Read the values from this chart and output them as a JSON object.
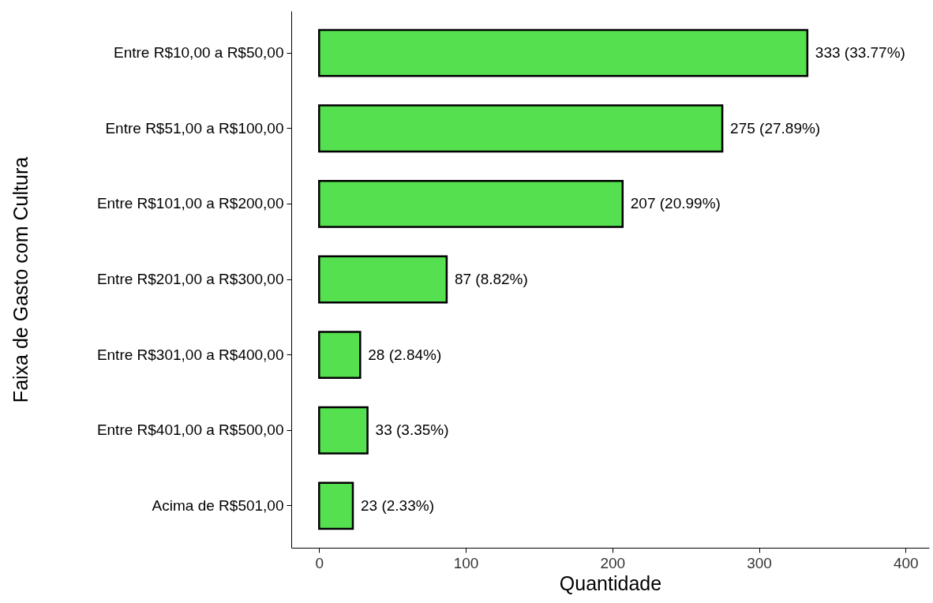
{
  "chart_data": {
    "type": "bar",
    "orientation": "horizontal",
    "xlabel": "Quantidade",
    "ylabel": "Faixa de Gasto com Cultura",
    "categories": [
      "Entre R$10,00 a R$50,00",
      "Entre R$51,00 a R$100,00",
      "Entre R$101,00 a R$200,00",
      "Entre R$201,00 a R$300,00",
      "Entre R$301,00 a R$400,00",
      "Entre R$401,00 a R$500,00",
      "Acima de R$501,00"
    ],
    "values": [
      333,
      275,
      207,
      87,
      28,
      33,
      23
    ],
    "value_labels": [
      "333 (33.77%)",
      "275 (27.89%)",
      "207 (20.99%)",
      "87 (8.82%)",
      "28 (2.84%)",
      "33 (3.35%)",
      "23 (2.33%)"
    ],
    "color": "#55e04f",
    "xlim": [
      -19,
      416
    ],
    "xticks": [
      0,
      100,
      200,
      300,
      400
    ],
    "grid": false
  }
}
